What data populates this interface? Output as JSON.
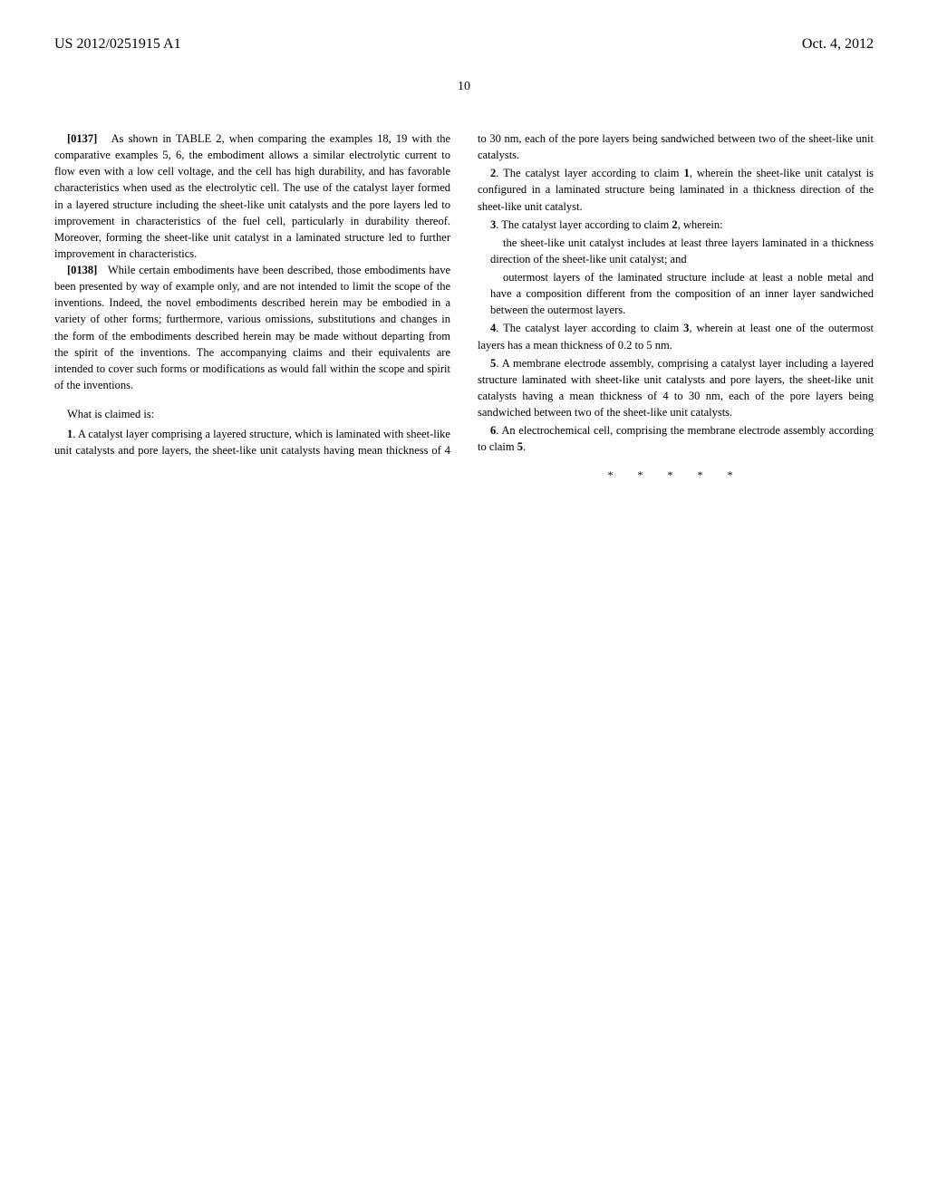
{
  "header": {
    "pub_number": "US 2012/0251915 A1",
    "pub_date": "Oct. 4, 2012",
    "page_number": "10"
  },
  "paragraphs": {
    "p137": {
      "num": "[0137]",
      "text": "As shown in TABLE 2, when comparing the examples 18, 19 with the comparative examples 5, 6, the embodiment allows a similar electrolytic current to flow even with a low cell voltage, and the cell has high durability, and has favorable characteristics when used as the electrolytic cell. The use of the catalyst layer formed in a layered structure including the sheet-like unit catalysts and the pore layers led to improvement in characteristics of the fuel cell, particularly in durability thereof. Moreover, forming the sheet-like unit catalyst in a laminated structure led to further improvement in characteristics."
    },
    "p138": {
      "num": "[0138]",
      "text": "While certain embodiments have been described, those embodiments have been presented by way of example only, and are not intended to limit the scope of the inventions. Indeed, the novel embodiments described herein may be embodied in a variety of other forms; furthermore, various omissions, substitutions and changes in the form of the embodiments described herein may be made without departing from the spirit of the inventions. The accompanying claims and their equivalents are intended to cover such forms or modifications as would fall within the scope and spirit of the inventions."
    }
  },
  "claims": {
    "header": "What is claimed is:",
    "c1": {
      "num": "1",
      "text": ". A catalyst layer comprising a layered structure, which is laminated with sheet-like unit catalysts and pore layers, the sheet-like unit catalysts having mean thickness of 4 to 30 nm, each of the pore layers being sandwiched between two of the sheet-like unit catalysts."
    },
    "c2": {
      "num": "2",
      "text": ". The catalyst layer according to claim ",
      "ref": "1",
      "text2": ", wherein the sheet-like unit catalyst is configured in a laminated structure being laminated in a thickness direction of the sheet-like unit catalyst."
    },
    "c3": {
      "num": "3",
      "text": ". The catalyst layer according to claim ",
      "ref": "2",
      "text2": ", wherein:",
      "sub1": "the sheet-like unit catalyst includes at least three layers laminated in a thickness direction of the sheet-like unit catalyst; and",
      "sub2": "outermost layers of the laminated structure include at least a noble metal and have a composition different from the composition of an inner layer sandwiched between the outermost layers."
    },
    "c4": {
      "num": "4",
      "text": ". The catalyst layer according to claim ",
      "ref": "3",
      "text2": ", wherein at least one of the outermost layers has a mean thickness of 0.2 to 5 nm."
    },
    "c5": {
      "num": "5",
      "text": ". A membrane electrode assembly, comprising a catalyst layer including a layered structure laminated with sheet-like unit catalysts and pore layers, the sheet-like unit catalysts having a mean thickness of 4 to 30 nm, each of the pore layers being sandwiched between two of the sheet-like unit catalysts."
    },
    "c6": {
      "num": "6",
      "text": ". An electrochemical cell, comprising the membrane electrode assembly according to claim ",
      "ref": "5",
      "text2": "."
    }
  },
  "end_marker": "* * * * *"
}
